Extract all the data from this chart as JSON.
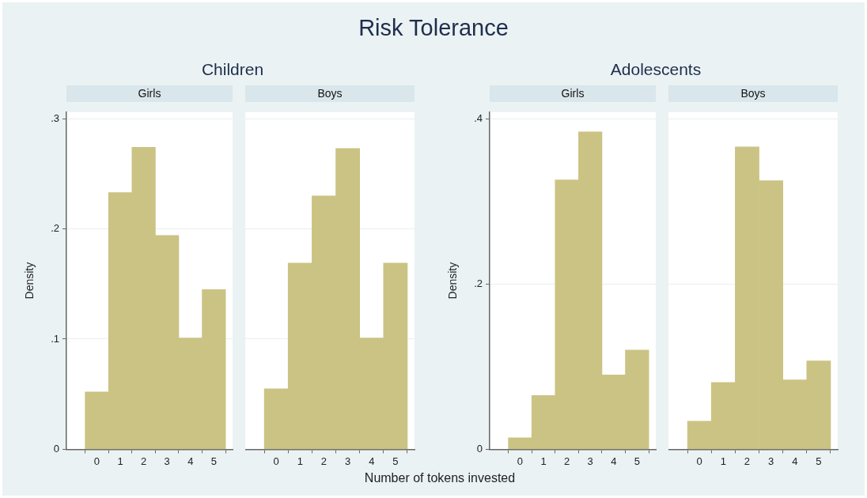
{
  "chart_data": [
    {
      "type": "histogram",
      "title": "Girls",
      "subtitle": "Children",
      "annotations": [
        "Risk Tolerance"
      ],
      "ylabel": "Density",
      "bins": [
        -0.5,
        0.5,
        1.5,
        2.5,
        3.5,
        4.5,
        5.5
      ],
      "values": [
        0.052,
        0.233,
        0.274,
        0.194,
        0.101,
        0.145
      ],
      "color": "#cbc383",
      "xlim": [
        -1.3,
        5.8
      ],
      "xticks": [
        0,
        1,
        2,
        3,
        4,
        5
      ],
      "ylim": [
        0,
        0.306
      ],
      "yticks": [
        0,
        {
          "value": 0.1,
          "label": ".1"
        },
        {
          "value": 0.2,
          "label": ".2"
        },
        {
          "value": 0.3,
          "label": ".3"
        }
      ],
      "grid": "y"
    },
    {
      "type": "histogram",
      "title": "Boys",
      "xlabel": "Number of tokens invested",
      "bins": [
        -0.5,
        0.5,
        1.5,
        2.5,
        3.5,
        4.5,
        5.5
      ],
      "values": [
        0.055,
        0.169,
        0.23,
        0.273,
        0.101,
        0.169
      ],
      "color": "#cbc383",
      "xlim": [
        -1.3,
        5.8
      ],
      "xticks": [
        0,
        1,
        2,
        3,
        4,
        5
      ],
      "ylim": [
        0,
        0.306
      ],
      "yticks": [
        {
          "value": 0,
          "label": null
        },
        {
          "value": 0.1,
          "label": null
        },
        {
          "value": 0.2,
          "label": null
        },
        {
          "value": 0.3,
          "label": null
        }
      ],
      "grid": "y",
      "tick_labels": "x"
    },
    {
      "type": "histogram",
      "title": "Girls",
      "subtitle": "Adolescents",
      "ylabel": "Density",
      "bins": [
        -0.5,
        0.5,
        1.5,
        2.5,
        3.5,
        4.5,
        5.5
      ],
      "values": [
        0.014,
        0.065,
        0.326,
        0.384,
        0.09,
        0.12
      ],
      "color": "#cbc383",
      "xlim": [
        -1.3,
        5.8
      ],
      "xticks": [
        0,
        1,
        2,
        3,
        4,
        5
      ],
      "ylim": [
        0,
        0.408
      ],
      "yticks": [
        0,
        {
          "value": 0.2,
          "label": ".2"
        },
        {
          "value": 0.4,
          "label": ".4"
        }
      ],
      "grid": "y"
    },
    {
      "type": "histogram",
      "title": "Boys",
      "bins": [
        -0.5,
        0.5,
        1.5,
        2.5,
        3.5,
        4.5,
        5.5
      ],
      "values": [
        0.034,
        0.081,
        0.366,
        0.325,
        0.084,
        0.107
      ],
      "color": "#cbc383",
      "xlim": [
        -1.3,
        5.8
      ],
      "xticks": [
        0,
        1,
        2,
        3,
        4,
        5
      ],
      "ylim": [
        0,
        0.408
      ],
      "yticks": [
        {
          "value": 0,
          "label": null
        },
        {
          "value": 0.2,
          "label": null
        },
        {
          "value": 0.4,
          "label": null
        }
      ],
      "grid": "y",
      "tick_labels": "x"
    }
  ]
}
